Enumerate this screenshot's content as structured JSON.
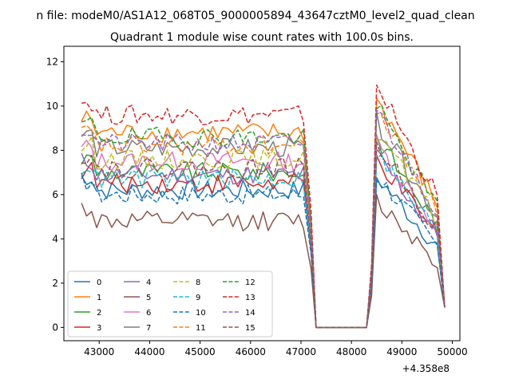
{
  "suptitle": "n file: modeM0/AS1A12_068T05_9000005894_43647cztM0_level2_quad_clean",
  "chart_data": {
    "type": "line",
    "title": "Quadrant 1 module wise count rates with 100.0s bins.",
    "xlabel": "",
    "ylabel": "",
    "x_offset_label": "+4.358e8",
    "xlim": [
      42300,
      50150
    ],
    "ylim": [
      -0.6,
      12.7
    ],
    "xticks": [
      43000,
      44000,
      45000,
      46000,
      47000,
      48000,
      49000,
      50000
    ],
    "yticks": [
      0,
      2,
      4,
      6,
      8,
      10,
      12
    ],
    "grid": false,
    "legend": "lower-left",
    "legend_columns": 4,
    "x_start": 42650,
    "x_step": 100,
    "gap_start_value": 47300,
    "gap_end_value": 48300,
    "resume_value": 48500,
    "end_value": 49850,
    "series": [
      {
        "name": "0",
        "color": "#1f77b4",
        "dash": "solid",
        "level1": 6.2,
        "level2": 6.8
      },
      {
        "name": "1",
        "color": "#ff7f0e",
        "dash": "solid",
        "level1": 8.8,
        "level2": 10.3
      },
      {
        "name": "2",
        "color": "#2ca02c",
        "dash": "solid",
        "level1": 7.0,
        "level2": 8.6
      },
      {
        "name": "3",
        "color": "#d62728",
        "dash": "solid",
        "level1": 6.5,
        "level2": 7.6
      },
      {
        "name": "4",
        "color": "#9467bd",
        "dash": "solid",
        "level1": 6.9,
        "level2": 7.8
      },
      {
        "name": "5",
        "color": "#8c564b",
        "dash": "solid",
        "level1": 4.8,
        "level2": 5.7
      },
      {
        "name": "6",
        "color": "#e377c2",
        "dash": "solid",
        "level1": 7.5,
        "level2": 8.3
      },
      {
        "name": "7",
        "color": "#7f7f7f",
        "dash": "solid",
        "level1": 8.1,
        "level2": 9.3
      },
      {
        "name": "8",
        "color": "#bcbd22",
        "dash": "dashed",
        "level1": 7.6,
        "level2": 8.9
      },
      {
        "name": "9",
        "color": "#17becf",
        "dash": "dashed",
        "level1": 6.7,
        "level2": 7.9
      },
      {
        "name": "10",
        "color": "#1f77b4",
        "dash": "dashed",
        "level1": 6.0,
        "level2": 6.9
      },
      {
        "name": "11",
        "color": "#ff7f0e",
        "dash": "dashed",
        "level1": 8.2,
        "level2": 9.9
      },
      {
        "name": "12",
        "color": "#2ca02c",
        "dash": "dashed",
        "level1": 8.6,
        "level2": 10.0
      },
      {
        "name": "13",
        "color": "#d62728",
        "dash": "dashed",
        "level1": 9.6,
        "level2": 11.0
      },
      {
        "name": "14",
        "color": "#9467bd",
        "dash": "dashed",
        "level1": 8.3,
        "level2": 9.8
      },
      {
        "name": "15",
        "color": "#8c564b",
        "dash": "dashed",
        "level1": 7.2,
        "level2": 8.3
      }
    ]
  }
}
